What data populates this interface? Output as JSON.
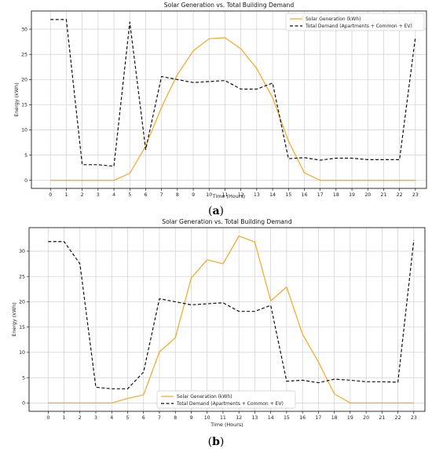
{
  "colors": {
    "solar": "#f5a623",
    "demand": "#111111",
    "grid": "#cfcfcf",
    "axis": "#000000"
  },
  "panels": [
    {
      "caption_open": "(",
      "caption_letter": "a",
      "caption_close": ")"
    },
    {
      "caption_open": "(",
      "caption_letter": "b",
      "caption_close": ")"
    }
  ],
  "chart_data": [
    {
      "type": "line",
      "title": "Solar Generation vs. Total Building Demand",
      "xlabel": "Time (Hours)",
      "ylabel": "Energy (kWh)",
      "x": [
        0,
        1,
        2,
        3,
        4,
        5,
        6,
        7,
        8,
        9,
        10,
        11,
        12,
        13,
        14,
        15,
        16,
        17,
        18,
        19,
        20,
        21,
        22,
        23
      ],
      "xticks": [
        "0",
        "1",
        "2",
        "3",
        "4",
        "5",
        "6",
        "7",
        "8",
        "9",
        "10",
        "11",
        "12",
        "13",
        "14",
        "15",
        "16",
        "17",
        "18",
        "19",
        "20",
        "21",
        "22",
        "23"
      ],
      "yticks": [
        0,
        5,
        10,
        15,
        20,
        25,
        30
      ],
      "ylim": [
        -1.6,
        33.6
      ],
      "grid": true,
      "legend_position": "top-right",
      "series": [
        {
          "name": "Solar Generation (kWh)",
          "style": "solid",
          "color": "#f5a623",
          "values": [
            0,
            0,
            0,
            0,
            0,
            1.4,
            6.8,
            14.5,
            21,
            25.7,
            28.1,
            28.3,
            26.1,
            22.2,
            16.4,
            7.8,
            1.5,
            0,
            0,
            0,
            0,
            0,
            0,
            0
          ]
        },
        {
          "name": "Total Demand (Apartments + Common + EV)",
          "style": "dashed",
          "color": "#111111",
          "values": [
            31.9,
            31.9,
            3.1,
            3.1,
            2.8,
            31.4,
            6.1,
            20.6,
            20.0,
            19.4,
            19.6,
            19.8,
            18.1,
            18.1,
            19.3,
            4.3,
            4.5,
            4.0,
            4.4,
            4.4,
            4.1,
            4.1,
            4.1,
            28.4
          ]
        }
      ]
    },
    {
      "type": "line",
      "title": "Solar Generation vs. Total Building Demand",
      "xlabel": "Time (Hours)",
      "ylabel": "Energy (kWh)",
      "x": [
        0,
        1,
        2,
        3,
        4,
        5,
        6,
        7,
        8,
        9,
        10,
        11,
        12,
        13,
        14,
        15,
        16,
        17,
        18,
        19,
        20,
        21,
        22,
        23
      ],
      "xticks": [
        "0",
        "1",
        "2",
        "3",
        "4",
        "5",
        "6",
        "7",
        "8",
        "9",
        "10",
        "11",
        "12",
        "13",
        "14",
        "15",
        "16",
        "17",
        "18",
        "19",
        "20",
        "21",
        "22",
        "23"
      ],
      "yticks": [
        0,
        5,
        10,
        15,
        20,
        25,
        30
      ],
      "ylim": [
        -1.65,
        34.65
      ],
      "grid": true,
      "legend_position": "bottom-center",
      "series": [
        {
          "name": "Solar Generation (kWh)",
          "style": "solid",
          "color": "#f5a623",
          "values": [
            0,
            0,
            0,
            0,
            0,
            0.9,
            1.6,
            10.1,
            12.9,
            24.7,
            28.3,
            27.5,
            33.0,
            31.8,
            20.2,
            22.9,
            13.6,
            8.1,
            1.8,
            0,
            0,
            0,
            0,
            0
          ]
        },
        {
          "name": "Total Demand (Apartments + Common + EV)",
          "style": "dashed",
          "color": "#111111",
          "values": [
            31.9,
            31.9,
            27.5,
            3.1,
            2.8,
            2.8,
            6.1,
            20.6,
            20.0,
            19.4,
            19.6,
            19.8,
            18.1,
            18.1,
            19.3,
            4.3,
            4.5,
            4.0,
            4.7,
            4.5,
            4.2,
            4.2,
            4.1,
            32.2
          ]
        }
      ]
    }
  ]
}
